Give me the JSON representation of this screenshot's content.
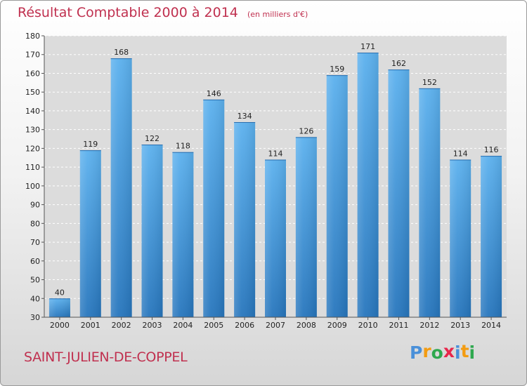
{
  "chart_data": {
    "type": "bar",
    "title": "Résultat Comptable 2000 à 2014",
    "subtitle": "(en milliers d'€)",
    "categories": [
      "2000",
      "2001",
      "2002",
      "2003",
      "2004",
      "2005",
      "2006",
      "2007",
      "2008",
      "2009",
      "2010",
      "2011",
      "2012",
      "2013",
      "2014"
    ],
    "values": [
      40,
      119,
      168,
      122,
      118,
      146,
      134,
      114,
      126,
      159,
      171,
      162,
      152,
      114,
      116
    ],
    "ylim": [
      30,
      180
    ],
    "ytick_step": 10,
    "grid": "horizontal dashed",
    "xlabel": "",
    "ylabel": "",
    "bar_color": "#3d8ad4",
    "highlight_color": "#e8264b"
  },
  "footer": {
    "city": "SAINT-JULIEN-DE-COPPEL",
    "logo_letters": [
      "P",
      "r",
      "o",
      "x",
      "i",
      "t",
      "i"
    ],
    "logo_colors": [
      "#4a90d9",
      "#f39c12",
      "#2fa84f",
      "#e8264b",
      "#4a90d9",
      "#f39c12",
      "#2fa84f"
    ]
  }
}
